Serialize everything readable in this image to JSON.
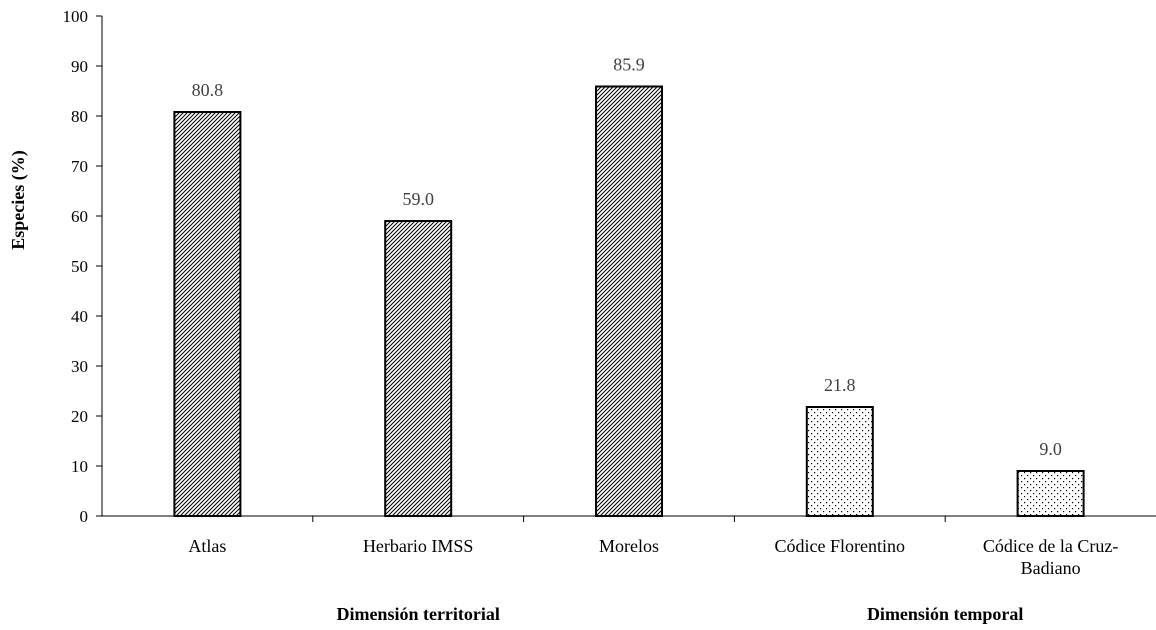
{
  "chart_data": {
    "type": "bar",
    "categories": [
      "Atlas",
      "Herbario IMSS",
      "Morelos",
      "Códice Florentino",
      "Códice de la Cruz-Badiano"
    ],
    "category_lines": [
      [
        "Atlas"
      ],
      [
        "Herbario IMSS"
      ],
      [
        "Morelos"
      ],
      [
        "Códice Florentino"
      ],
      [
        "Códice de la Cruz-",
        "Badiano"
      ]
    ],
    "values": [
      80.8,
      59.0,
      85.9,
      21.8,
      9.0
    ],
    "value_labels": [
      "80.8",
      "59.0",
      "85.9",
      "21.8",
      "9.0"
    ],
    "bar_patterns": [
      "diagonal-hatch",
      "diagonal-hatch",
      "diagonal-hatch",
      "dots",
      "dots"
    ],
    "title": "",
    "xlabel": "",
    "ylabel": "Especies  (%)",
    "ylim": [
      0,
      100
    ],
    "yticks": [
      0,
      10,
      20,
      30,
      40,
      50,
      60,
      70,
      80,
      90,
      100
    ],
    "grid": false,
    "legend": "none",
    "groups": [
      {
        "label": "Dimensión territorial",
        "categories": [
          "Atlas",
          "Herbario IMSS",
          "Morelos"
        ]
      },
      {
        "label": "Dimensión temporal",
        "categories": [
          "Códice Florentino",
          "Códice de la Cruz-Badiano"
        ]
      }
    ]
  }
}
